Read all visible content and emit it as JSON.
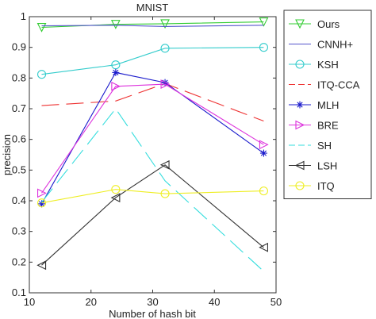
{
  "chart_data": {
    "type": "line",
    "title": "MNIST",
    "xlabel": "Number of hash bit",
    "ylabel": "precision",
    "xlim": [
      10,
      50
    ],
    "ylim": [
      0.1,
      1
    ],
    "xticks": [
      10,
      20,
      30,
      40,
      50
    ],
    "yticks": [
      0.1,
      0.2,
      0.3,
      0.4,
      0.5,
      0.6,
      0.7,
      0.8,
      0.9,
      1
    ],
    "xtick_labels": [
      "10",
      "20",
      "30",
      "40",
      "50"
    ],
    "ytick_labels": [
      "0.1",
      "0.2",
      "0.3",
      "0.4",
      "0.5",
      "0.6",
      "0.7",
      "0.8",
      "0.9",
      "1"
    ],
    "grid": false,
    "legend_position": "outside-right",
    "x": [
      12,
      24,
      32,
      48
    ],
    "series": [
      {
        "name": "Ours",
        "values": [
          0.965,
          0.975,
          0.977,
          0.983
        ],
        "color": "#33cc33",
        "dash": "solid",
        "marker": "triangle-down"
      },
      {
        "name": "CNNH+",
        "values": [
          0.97,
          0.972,
          0.968,
          0.972
        ],
        "color": "#5555cc",
        "dash": "solid",
        "marker": "none"
      },
      {
        "name": "KSH",
        "values": [
          0.812,
          0.843,
          0.897,
          0.9
        ],
        "color": "#33cccc",
        "dash": "solid",
        "marker": "circle"
      },
      {
        "name": "ITQ-CCA",
        "values": [
          0.71,
          0.725,
          0.782,
          0.66
        ],
        "color": "#ee3333",
        "dash": "dashed",
        "marker": "none"
      },
      {
        "name": "MLH",
        "values": [
          0.39,
          0.818,
          0.785,
          0.555
        ],
        "color": "#1a1acc",
        "dash": "solid",
        "marker": "asterisk"
      },
      {
        "name": "BRE",
        "values": [
          0.425,
          0.773,
          0.78,
          0.583
        ],
        "color": "#dd33dd",
        "dash": "solid",
        "marker": "triangle-right"
      },
      {
        "name": "SH",
        "values": [
          0.395,
          0.7,
          0.465,
          0.17
        ],
        "color": "#33dddd",
        "dash": "dashed",
        "marker": "none"
      },
      {
        "name": "LSH",
        "values": [
          0.19,
          0.41,
          0.517,
          0.248
        ],
        "color": "#333333",
        "dash": "solid",
        "marker": "triangle-left"
      },
      {
        "name": "ITQ",
        "values": [
          0.393,
          0.437,
          0.423,
          0.432
        ],
        "color": "#eeee22",
        "dash": "solid",
        "marker": "circle"
      }
    ]
  }
}
